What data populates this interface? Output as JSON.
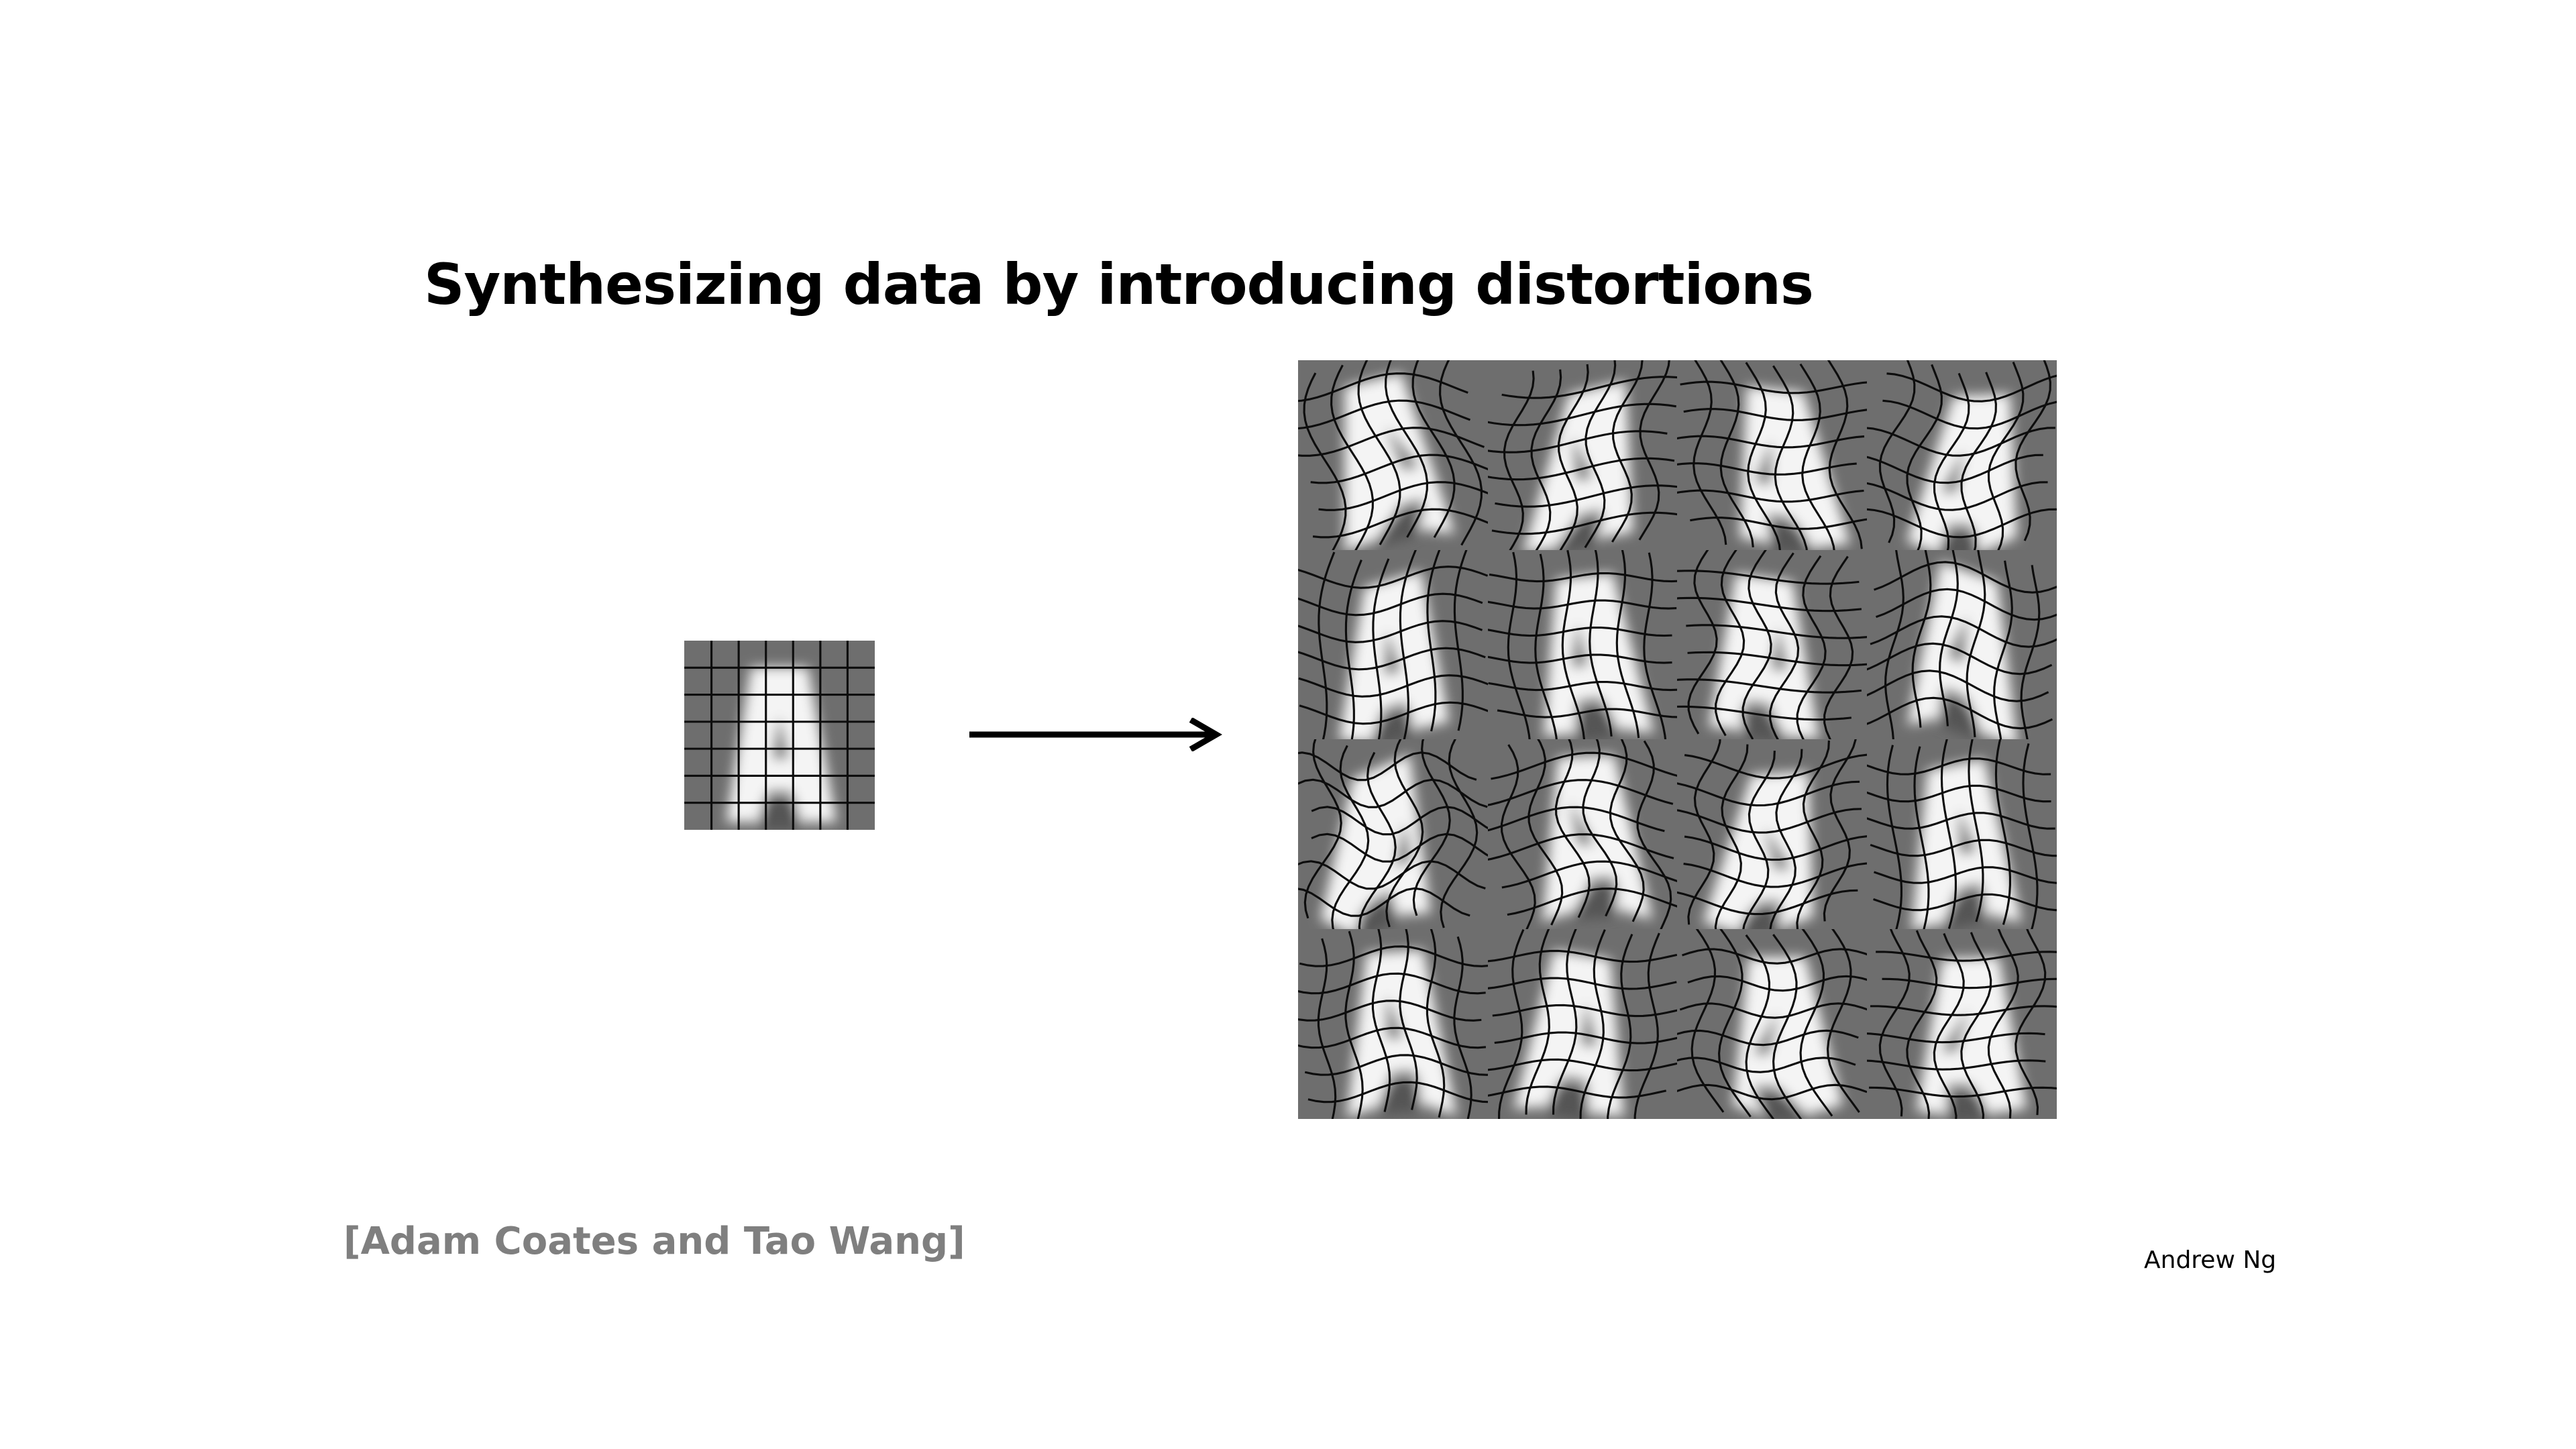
{
  "slide": {
    "title": "Synthesizing data by introducing distortions",
    "citation": "[Adam Coates and Tao Wang]",
    "author": "Andrew Ng"
  },
  "colors": {
    "background": "#ffffff",
    "image_bg": "#6e6e6e",
    "letter": "#f4f4f4",
    "grid_lines": "#0d0d0d",
    "citation": "#7f7f7f"
  },
  "figure": {
    "original_letter": "A",
    "distorted_count": 16,
    "grid_rows": 4,
    "grid_cols": 4
  }
}
